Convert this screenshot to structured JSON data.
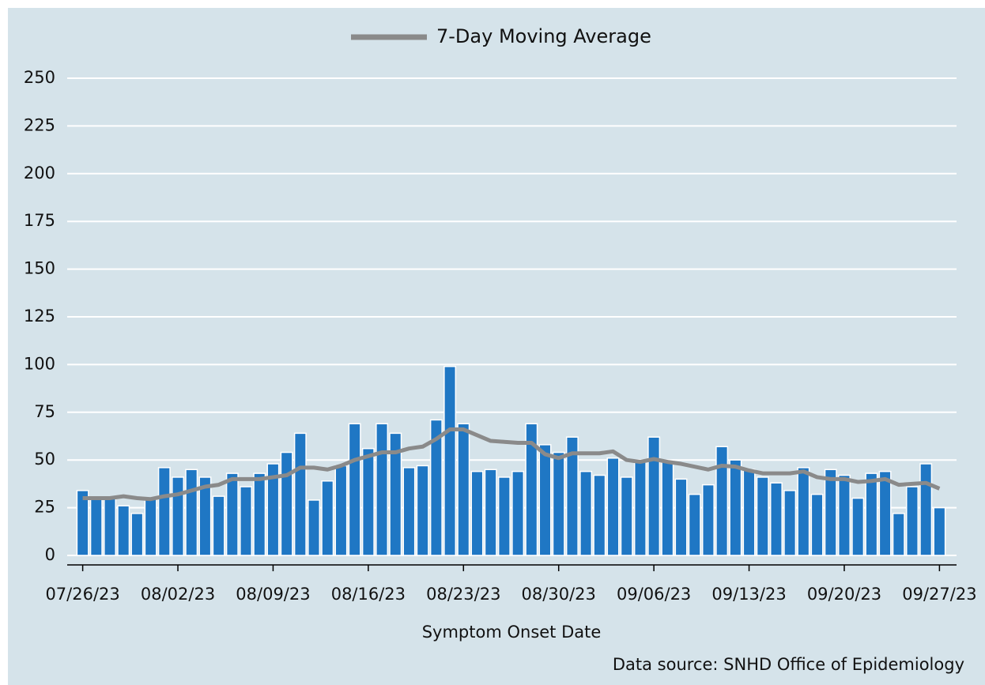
{
  "chart_data": {
    "type": "bar",
    "x_label": "Symptom Onset Date",
    "source": "Data source: SNHD Office of Epidemiology",
    "categories": [
      "07/26/23",
      null,
      null,
      null,
      null,
      null,
      null,
      "08/02/23",
      null,
      null,
      null,
      null,
      null,
      null,
      "08/09/23",
      null,
      null,
      null,
      null,
      null,
      null,
      "08/16/23",
      null,
      null,
      null,
      null,
      null,
      null,
      "08/23/23",
      null,
      null,
      null,
      null,
      null,
      null,
      "08/30/23",
      null,
      null,
      null,
      null,
      null,
      null,
      "09/06/23",
      null,
      null,
      null,
      null,
      null,
      null,
      "09/13/23",
      null,
      null,
      null,
      null,
      null,
      null,
      "09/20/23",
      null,
      null,
      null,
      null,
      null,
      null,
      "09/27/23"
    ],
    "series": [
      {
        "type": "bar",
        "color": "#1f77c4",
        "values": [
          34,
          30,
          30,
          26,
          22,
          30,
          46,
          41,
          45,
          41,
          31,
          43,
          36,
          43,
          48,
          54,
          64,
          29,
          39,
          47,
          69,
          56,
          69,
          64,
          46,
          47,
          71,
          99,
          69,
          44,
          45,
          41,
          44,
          69,
          58,
          54,
          62,
          44,
          42,
          51,
          41,
          50,
          62,
          49,
          40,
          32,
          37,
          57,
          50,
          45,
          41,
          38,
          34,
          46,
          32,
          45,
          42,
          30,
          43,
          44,
          22,
          36,
          48,
          25
        ]
      },
      {
        "type": "line",
        "name": "7-Day Moving Average",
        "color": "#8a8a8a",
        "values": [
          30,
          30,
          30,
          31,
          30,
          29.5,
          31,
          32,
          34,
          36,
          37,
          40,
          40,
          40,
          41,
          42,
          46,
          46,
          45,
          47,
          50,
          52,
          54,
          54,
          56,
          57,
          61,
          66,
          66,
          63,
          60,
          59.5,
          59,
          59,
          53,
          51,
          53.5,
          53.5,
          53.5,
          54.5,
          50,
          49,
          50.5,
          49,
          48,
          46.5,
          45,
          47,
          46.5,
          44.5,
          43,
          43,
          43,
          44,
          41,
          40,
          40,
          38.5,
          39,
          40,
          37,
          37.5,
          38,
          35
        ]
      }
    ],
    "ylim": [
      0,
      250
    ],
    "yticks": [
      0,
      25,
      50,
      75,
      100,
      125,
      150,
      175,
      200,
      225,
      250
    ],
    "grid": true,
    "legend": "top"
  }
}
